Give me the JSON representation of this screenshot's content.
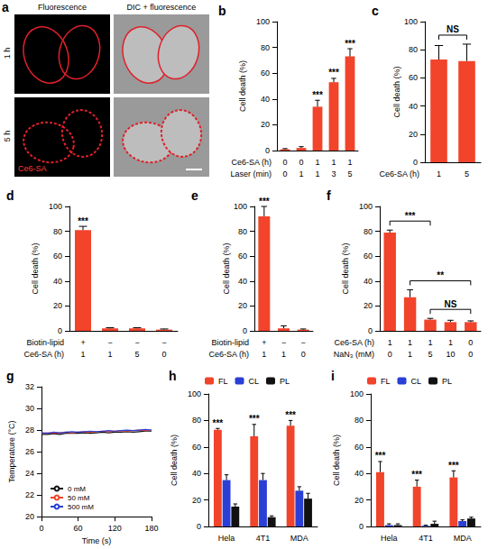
{
  "image_panel": {
    "letter": "a",
    "columns": [
      "Fluorescence",
      "DIC + fluorescence"
    ],
    "rows": [
      "1 h",
      "5 h"
    ],
    "stain": "Ce6-SA"
  },
  "chart_data": [
    {
      "type": "bar",
      "letter": "b",
      "y_label": "Cell death (%)",
      "ylim": [
        0,
        100
      ],
      "yticks": [
        0,
        20,
        40,
        60,
        80,
        100
      ],
      "grid": false,
      "color": "#f2432b",
      "category_rows": [
        {
          "name": "Ce6-SA (h)",
          "labels": [
            "0",
            "0",
            "1",
            "1",
            "1"
          ]
        },
        {
          "name": "Laser (min)",
          "labels": [
            "0",
            "1",
            "1",
            "3",
            "5"
          ]
        }
      ],
      "values": [
        1,
        2,
        34,
        53,
        73
      ],
      "errors": [
        0.5,
        1,
        5,
        3,
        6
      ],
      "significance": [
        null,
        null,
        "***",
        "***",
        "***"
      ]
    },
    {
      "type": "bar",
      "letter": "c",
      "y_label": "Cell death (%)",
      "ylim": [
        0,
        100
      ],
      "yticks": [
        0,
        20,
        40,
        60,
        80,
        100
      ],
      "grid": false,
      "color": "#f2432b",
      "category_rows": [
        {
          "name": "Ce6-SA (h)",
          "labels": [
            "1",
            "5"
          ]
        }
      ],
      "values": [
        73,
        72
      ],
      "errors": [
        10,
        12
      ],
      "significance": [
        null,
        null
      ],
      "brackets": [
        {
          "from": 0,
          "to": 1,
          "text": "NS"
        }
      ]
    },
    {
      "type": "bar",
      "letter": "d",
      "y_label": "Cell death (%)",
      "ylim": [
        0,
        100
      ],
      "yticks": [
        0,
        20,
        40,
        60,
        80,
        100
      ],
      "grid": false,
      "color": "#f2432b",
      "category_rows": [
        {
          "name": "Biotin-lipid",
          "labels": [
            "+",
            "−",
            "−",
            "−"
          ]
        },
        {
          "name": "Ce6-SA (h)",
          "labels": [
            "1",
            "1",
            "5",
            "0"
          ]
        }
      ],
      "values": [
        81,
        2,
        2,
        1
      ],
      "errors": [
        3,
        0.5,
        0.5,
        0.5
      ],
      "significance": [
        "***",
        null,
        null,
        null
      ]
    },
    {
      "type": "bar",
      "letter": "e",
      "y_label": "Cell death (%)",
      "ylim": [
        0,
        100
      ],
      "yticks": [
        0,
        20,
        40,
        60,
        80,
        100
      ],
      "grid": false,
      "color": "#f2432b",
      "category_rows": [
        {
          "name": "Biotin-lipid",
          "labels": [
            "+",
            "−",
            "−"
          ]
        },
        {
          "name": "Ce6-SA (h)",
          "labels": [
            "1",
            "1",
            "0"
          ]
        }
      ],
      "values": [
        92,
        2,
        1
      ],
      "errors": [
        8,
        2,
        0.5
      ],
      "significance": [
        "***",
        null,
        null
      ]
    },
    {
      "type": "bar",
      "letter": "f",
      "y_label": "Cell death (%)",
      "ylim": [
        0,
        100
      ],
      "yticks": [
        0,
        20,
        40,
        60,
        80,
        100
      ],
      "grid": false,
      "color": "#f2432b",
      "category_rows": [
        {
          "name": "Ce6-SA (h)",
          "labels": [
            "1",
            "1",
            "1",
            "1",
            "0"
          ]
        },
        {
          "name": "NaN₃ (mM)",
          "labels": [
            "0",
            "1",
            "5",
            "10",
            "0"
          ]
        }
      ],
      "values": [
        79,
        27,
        9,
        7,
        7
      ],
      "errors": [
        2,
        6,
        1,
        1.5,
        1
      ],
      "significance": [
        null,
        null,
        null,
        null,
        null
      ],
      "brackets": [
        {
          "from": 0,
          "to": 2,
          "text": "***"
        },
        {
          "from": 1,
          "to": 4,
          "text": "**"
        },
        {
          "from": 2,
          "to": 4,
          "text": "NS"
        }
      ]
    },
    {
      "type": "line",
      "letter": "g",
      "x_label": "Time (s)",
      "y_label": "Temperature (°C)",
      "xlim": [
        0,
        180
      ],
      "xticks": [
        0,
        60,
        120,
        180
      ],
      "ylim": [
        20,
        32
      ],
      "yticks": [
        20,
        22,
        24,
        26,
        28,
        30,
        32
      ],
      "grid": false,
      "legend": "lower left",
      "x": [
        0,
        10,
        20,
        30,
        40,
        50,
        60,
        70,
        80,
        90,
        100,
        110,
        120,
        130,
        140,
        150,
        160,
        170,
        180
      ],
      "series": [
        {
          "name": "0 mM",
          "color": "#111111",
          "values": [
            27.6,
            27.6,
            27.65,
            27.6,
            27.7,
            27.7,
            27.7,
            27.75,
            27.7,
            27.75,
            27.8,
            27.75,
            27.8,
            27.8,
            27.85,
            27.8,
            27.85,
            27.9,
            27.9
          ]
        },
        {
          "name": "50 mM",
          "color": "#f2432b",
          "values": [
            27.7,
            27.75,
            27.7,
            27.75,
            27.8,
            27.75,
            27.8,
            27.85,
            27.8,
            27.85,
            27.9,
            27.85,
            27.9,
            27.95,
            27.9,
            27.95,
            28.0,
            27.95,
            28.0
          ]
        },
        {
          "name": "500 mM",
          "color": "#2a3fd6",
          "values": [
            27.75,
            27.7,
            27.8,
            27.75,
            27.8,
            27.85,
            27.8,
            27.85,
            27.9,
            27.85,
            27.9,
            27.95,
            27.9,
            27.95,
            28.0,
            27.95,
            28.0,
            28.05,
            28.0
          ]
        }
      ]
    },
    {
      "type": "bar",
      "letter": "h",
      "y_label": "Cell death (%)",
      "ylim": [
        0,
        100
      ],
      "yticks": [
        0,
        20,
        40,
        60,
        80,
        100
      ],
      "grid": false,
      "legend": "top",
      "categories": [
        "Hela",
        "4T1",
        "MDA"
      ],
      "series": [
        {
          "name": "FL",
          "color": "#f2432b",
          "values": [
            73,
            68,
            76
          ],
          "errors": [
            1,
            9,
            4
          ],
          "significance": [
            "***",
            "***",
            "***"
          ]
        },
        {
          "name": "CL",
          "color": "#2a3fd6",
          "values": [
            35,
            35,
            27
          ],
          "errors": [
            4,
            5,
            3
          ]
        },
        {
          "name": "PL",
          "color": "#111111",
          "values": [
            15,
            7,
            21
          ],
          "errors": [
            2,
            1,
            4
          ]
        }
      ]
    },
    {
      "type": "bar",
      "letter": "i",
      "y_label": "Cell death (%)",
      "ylim": [
        0,
        100
      ],
      "yticks": [
        0,
        20,
        40,
        60,
        80,
        100
      ],
      "grid": false,
      "legend": "top",
      "categories": [
        "Hela",
        "4T1",
        "MDA"
      ],
      "series": [
        {
          "name": "FL",
          "color": "#f2432b",
          "values": [
            41,
            30,
            37
          ],
          "errors": [
            8,
            5,
            5
          ],
          "significance": [
            "***",
            "***",
            "***"
          ]
        },
        {
          "name": "CL",
          "color": "#2a3fd6",
          "values": [
            1,
            0.5,
            4
          ],
          "errors": [
            1,
            0.5,
            1
          ]
        },
        {
          "name": "PL",
          "color": "#111111",
          "values": [
            1,
            2,
            6
          ],
          "errors": [
            1,
            2,
            1
          ]
        }
      ]
    }
  ]
}
